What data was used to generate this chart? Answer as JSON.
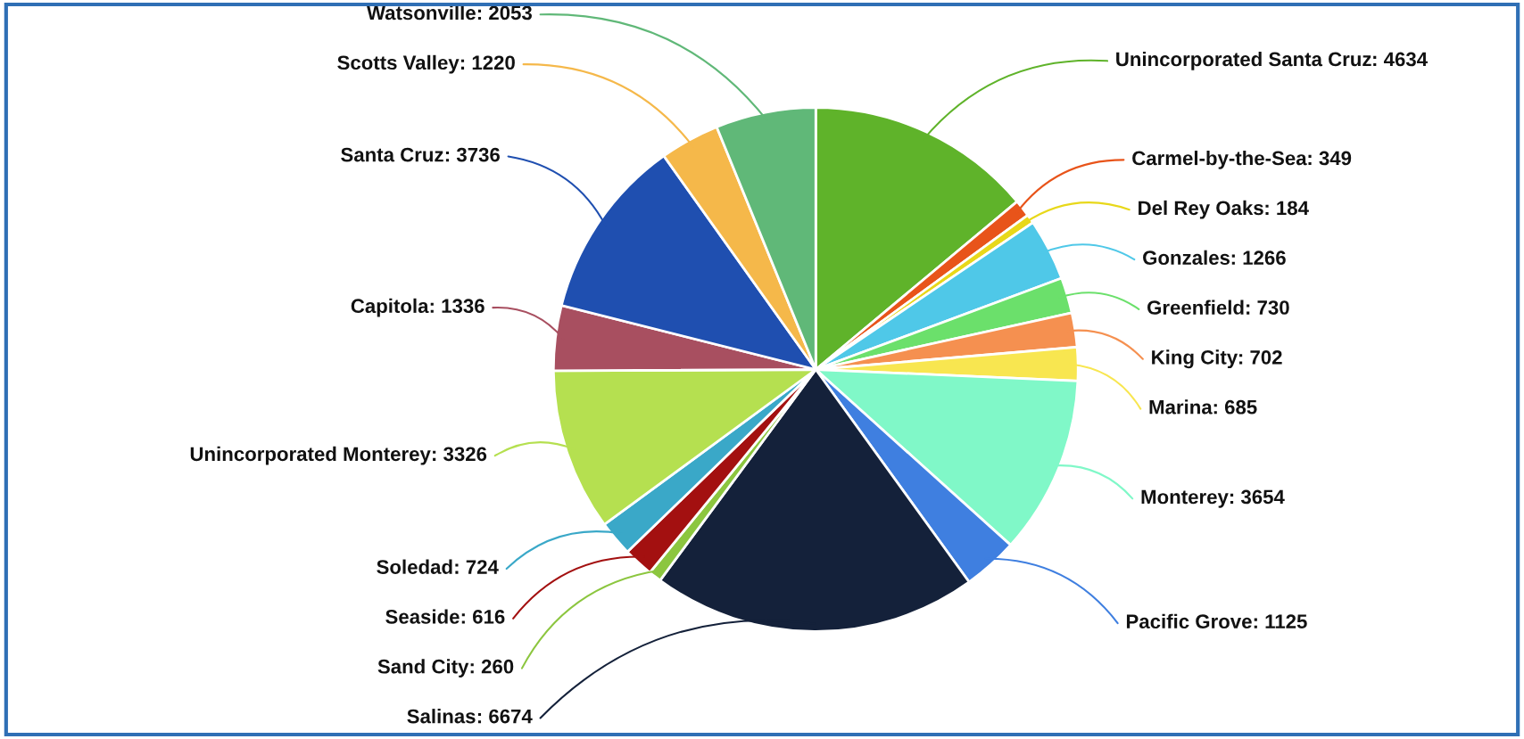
{
  "chart_data": {
    "type": "pie",
    "categories": [
      "Unincorporated Santa Cruz",
      "Carmel-by-the-Sea",
      "Del Rey Oaks",
      "Gonzales",
      "Greenfield",
      "King City",
      "Marina",
      "Monterey",
      "Pacific Grove",
      "Salinas",
      "Sand City",
      "Seaside",
      "Soledad",
      "Unincorporated Monterey",
      "Capitola",
      "Santa Cruz",
      "Scotts Valley",
      "Watsonville"
    ],
    "values": [
      4634,
      349,
      184,
      1266,
      730,
      702,
      685,
      3654,
      1125,
      6674,
      260,
      616,
      724,
      3326,
      1336,
      3736,
      1220,
      2053
    ],
    "colors": [
      "#5fb32a",
      "#e8541a",
      "#e8d81a",
      "#4fc8e8",
      "#6be06b",
      "#f59050",
      "#f8e650",
      "#80f8c8",
      "#3f7fe0",
      "#14213a",
      "#8cc63f",
      "#a31010",
      "#3aa8c8",
      "#b5e050",
      "#a84f60",
      "#1f4fb0",
      "#f5b84a",
      "#60b878"
    ],
    "value_labels": [
      ": 4634",
      ": 349",
      ": 184",
      ": 1266",
      ": 730",
      ": 702",
      ": 685",
      ": 3654",
      ": 1125",
      ": 6674",
      ": 260",
      ": 616",
      ": 724",
      ": 3326",
      ": 1336",
      ": 3736",
      ": 1220",
      ": 2053"
    ],
    "legend": false
  }
}
